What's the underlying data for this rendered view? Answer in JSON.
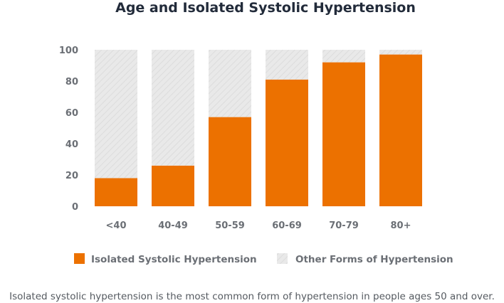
{
  "chart_data": {
    "type": "bar",
    "stacked": true,
    "title": "Age and Isolated Systolic Hypertension",
    "xlabel": "",
    "ylabel": "",
    "categories": [
      "<40",
      "40-49",
      "50-59",
      "60-69",
      "70-79",
      "80+"
    ],
    "ylim": [
      0,
      100
    ],
    "yticks": [
      0,
      20,
      40,
      60,
      80,
      100
    ],
    "grid": false,
    "legend_position": "bottom",
    "series": [
      {
        "name": "Isolated Systolic Hypertension",
        "values": [
          18,
          26,
          57,
          81,
          92,
          97
        ],
        "color": "#ec7100"
      },
      {
        "name": "Other Forms of Hypertension",
        "values": [
          82,
          74,
          43,
          19,
          8,
          3
        ],
        "color": "#e8e8e8"
      }
    ]
  },
  "caption": "Isolated systolic hypertension is the most common form of hypertension in people ages 50 and over."
}
